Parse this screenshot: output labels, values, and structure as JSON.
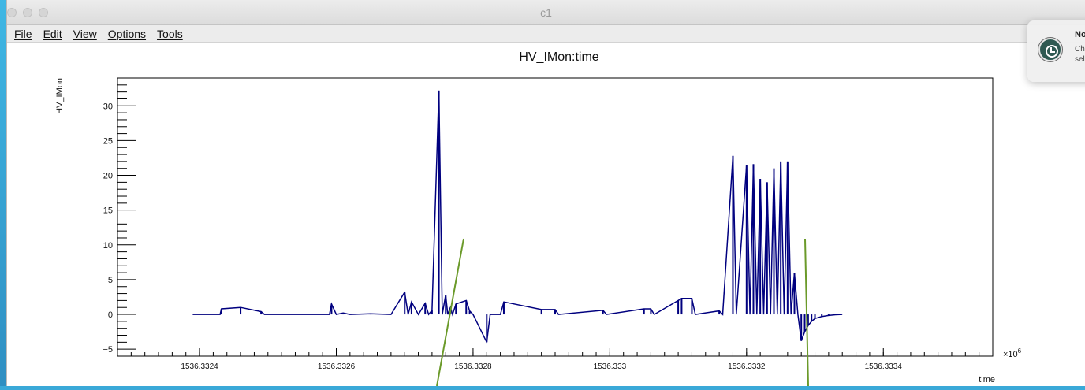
{
  "window": {
    "title": "c1"
  },
  "menu": [
    {
      "label": "File"
    },
    {
      "label": "Edit"
    },
    {
      "label": "View"
    },
    {
      "label": "Options"
    },
    {
      "label": "Tools"
    }
  ],
  "notification": {
    "title": "No",
    "body_line1": "Che",
    "body_line2": "sele"
  },
  "chart_data": {
    "type": "line",
    "title": "HV_IMon:time",
    "xlabel": "time",
    "ylabel": "HV_IMon",
    "x_exponent_label": "×10",
    "x_exponent_power": "6",
    "xlim": [
      1536.33228,
      1536.33356
    ],
    "ylim": [
      -6,
      34
    ],
    "x_ticks": [
      "1536.3324",
      "1536.3326",
      "1536.3328",
      "1536.333",
      "1536.3332",
      "1536.3334"
    ],
    "x_tick_values": [
      1536.3324,
      1536.3326,
      1536.3328,
      1536.333,
      1536.3332,
      1536.3334
    ],
    "y_ticks": [
      -5,
      0,
      5,
      10,
      15,
      20,
      25,
      30
    ],
    "grid": false,
    "series_color": "#00007f",
    "series": [
      {
        "x": [
          1536.33239,
          1536.33243,
          1536.332432,
          1536.33246,
          1536.33249,
          1536.332495,
          1536.33259,
          1536.332593,
          1536.3326,
          1536.33261,
          1536.33262,
          1536.33265,
          1536.33268,
          1536.3327,
          1536.332705,
          1536.33271,
          1536.33272,
          1536.33273,
          1536.332735,
          1536.33274,
          1536.33275,
          1536.332755,
          1536.33276,
          1536.332763,
          1536.332767,
          1536.33277,
          1536.332775,
          1536.33279,
          1536.332795,
          1536.3328,
          1536.33282,
          1536.332825,
          1536.33284,
          1536.332845,
          1536.3329,
          1536.33292,
          1536.332925,
          1536.33299,
          1536.332995,
          1536.33305,
          1536.33306,
          1536.333065,
          1536.3331,
          1536.333105,
          1536.33312,
          1536.333125,
          1536.33316,
          1536.333165,
          1536.33318,
          1536.333185,
          1536.3332,
          1536.333205,
          1536.33321,
          1536.333215,
          1536.33322,
          1536.333225,
          1536.33323,
          1536.333235,
          1536.33324,
          1536.333245,
          1536.33325,
          1536.333255,
          1536.33326,
          1536.333265,
          1536.33327,
          1536.333275,
          1536.33328,
          1536.333285,
          1536.33329,
          1536.333295,
          1536.3333,
          1536.33331,
          1536.33332,
          1536.33333,
          1536.33334
        ],
        "y": [
          0,
          0,
          0.8,
          1.0,
          0.4,
          0,
          0,
          1.5,
          0,
          0.2,
          0,
          0.1,
          0,
          3.2,
          0,
          1.8,
          0,
          1.6,
          0,
          0.6,
          32.2,
          0,
          2.8,
          0,
          1.0,
          0,
          1.5,
          2.0,
          0.5,
          0,
          -4.0,
          0,
          0,
          1.8,
          0.7,
          0.7,
          0,
          0.6,
          0,
          0.8,
          0.8,
          0,
          2.0,
          2.3,
          2.3,
          0,
          0.5,
          0,
          22.8,
          0,
          21.5,
          0,
          21.6,
          0,
          19.5,
          0,
          19.0,
          0,
          21.0,
          0,
          22.0,
          0,
          22.0,
          0,
          6.0,
          0,
          -3.8,
          -2.5,
          -1.6,
          -1.0,
          -0.6,
          -0.3,
          -0.15,
          -0.05,
          0
        ]
      }
    ]
  }
}
